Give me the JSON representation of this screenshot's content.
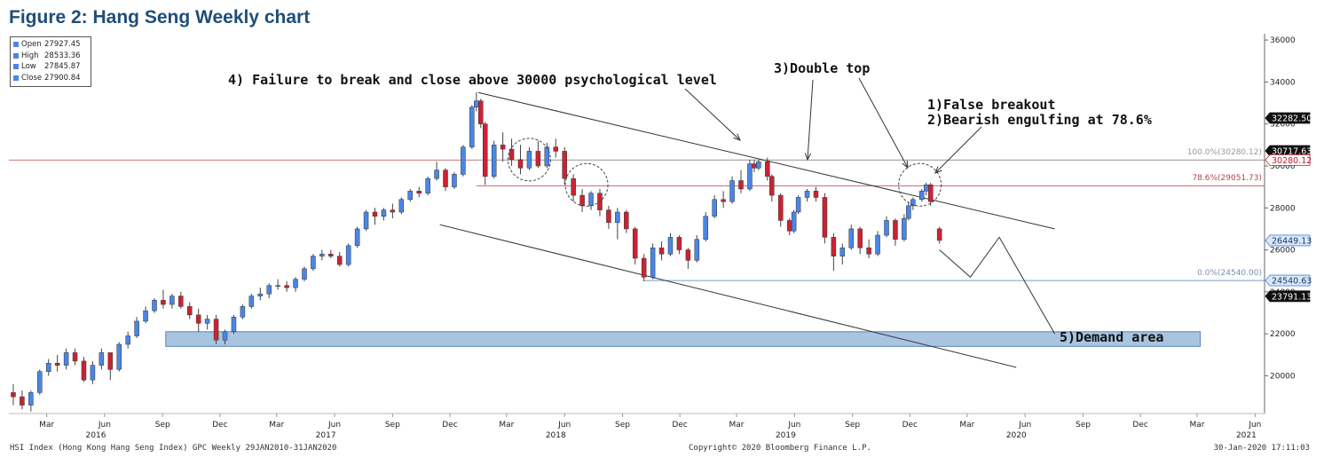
{
  "figure_title": "Figure 2: Hang Seng Weekly chart",
  "ohlc": [
    {
      "key": "Open",
      "value": "27927.45"
    },
    {
      "key": "High",
      "value": "28533.36"
    },
    {
      "key": "Low",
      "value": "27845.87"
    },
    {
      "key": "Close",
      "value": "27900.84"
    }
  ],
  "annotations": {
    "failure": "4) Failure to break and close above 30000 psychological level",
    "double_top": "3)Double top",
    "false_breakout": "1)False breakout",
    "engulfing": "2)Bearish engulfing at 78.6%",
    "demand": "5)Demand area"
  },
  "fib_labels": {
    "f100": "100.0%(30280.12)",
    "f786": "78.6%(29051.73)",
    "f0": "0.0%(24540.00)"
  },
  "price_tags": [
    {
      "value": 32282.5,
      "label": "32282.50",
      "style": "dark"
    },
    {
      "value": 30717.63,
      "label": "30717.63",
      "style": "dark"
    },
    {
      "value": 30280.12,
      "label": "30280.12",
      "style": "red"
    },
    {
      "value": 26449.13,
      "label": "26449.13",
      "style": "blue"
    },
    {
      "value": 24540.63,
      "label": "24540.63",
      "style": "blue"
    },
    {
      "value": 23791.13,
      "label": "23791.13",
      "style": "dark"
    }
  ],
  "footer": {
    "left": "HSI Index (Hong Kong Hang Seng Index) GPC  Weekly 29JAN2010-31JAN2020",
    "center": "Copyright© 2020 Bloomberg Finance L.P.",
    "right": "30-Jan-2020 17:11:03"
  },
  "colors": {
    "up": "#4a86e8",
    "down": "#cc2233",
    "fib100": "#aaaaaa",
    "fib786": "#cc6666",
    "fib0": "#7a9ccc",
    "demand_fill": "#a8c4e0",
    "demand_border": "#5a86b8",
    "res_line": "#c87878",
    "title": "#1f4e79"
  },
  "chart_data": {
    "type": "candlestick",
    "title": "Figure 2: Hang Seng Weekly chart",
    "y_ticks": [
      20000,
      22000,
      24000,
      26000,
      28000,
      30000,
      32000,
      34000,
      36000
    ],
    "ylim": [
      18200,
      36300
    ],
    "x_ticks": [
      "Mar",
      "Jun",
      "Sep",
      "Dec",
      "Mar",
      "Jun",
      "Sep",
      "Dec",
      "Mar",
      "Jun",
      "Sep",
      "Dec",
      "Mar",
      "Jun",
      "Sep",
      "Dec",
      "Mar",
      "Jun",
      "Sep",
      "Dec",
      "Mar",
      "Jun"
    ],
    "years": [
      "2016",
      "2017",
      "2018",
      "2019",
      "2020",
      "2021"
    ],
    "xlim": [
      "2016-01-15",
      "2021-06-30"
    ],
    "grid": false,
    "fib_levels": [
      {
        "level": "100.0%",
        "value": 30280.12
      },
      {
        "level": "78.6%",
        "value": 29051.73
      },
      {
        "level": "0.0%",
        "value": 24540.0
      }
    ],
    "resistance_level": 30280.12,
    "demand_zone": {
      "from": "2016-09-20",
      "to": "2021-03-20",
      "low": 21400,
      "high": 22100
    },
    "channel": {
      "upper": [
        {
          "x": "2018-01-29",
          "y": 33500
        },
        {
          "x": "2020-08-01",
          "y": 27000
        }
      ],
      "lower": [
        {
          "x": "2017-11-29",
          "y": 27200
        },
        {
          "x": "2020-06-01",
          "y": 20400
        }
      ]
    },
    "projection": [
      {
        "x": "2020-01-31",
        "y": 26000
      },
      {
        "x": "2020-03-20",
        "y": 24700
      },
      {
        "x": "2020-05-05",
        "y": 26600
      },
      {
        "x": "2020-08-01",
        "y": 22000
      }
    ],
    "highlights": [
      {
        "x": "2018-04-20",
        "y": 30300
      },
      {
        "x": "2018-07-20",
        "y": 29100
      },
      {
        "x": "2019-12-31",
        "y": 29100
      }
    ],
    "candles": [
      {
        "d": "2016-01-22",
        "o": 19200,
        "h": 19600,
        "l": 18600,
        "c": 19000
      },
      {
        "d": "2016-02-05",
        "o": 19000,
        "h": 19300,
        "l": 18400,
        "c": 18600
      },
      {
        "d": "2016-02-19",
        "o": 18600,
        "h": 19300,
        "l": 18300,
        "c": 19200
      },
      {
        "d": "2016-03-04",
        "o": 19200,
        "h": 20300,
        "l": 19100,
        "c": 20200
      },
      {
        "d": "2016-03-18",
        "o": 20200,
        "h": 20800,
        "l": 20000,
        "c": 20600
      },
      {
        "d": "2016-04-01",
        "o": 20600,
        "h": 21000,
        "l": 20200,
        "c": 20500
      },
      {
        "d": "2016-04-15",
        "o": 20500,
        "h": 21300,
        "l": 20300,
        "c": 21100
      },
      {
        "d": "2016-04-29",
        "o": 21100,
        "h": 21300,
        "l": 20500,
        "c": 20700
      },
      {
        "d": "2016-05-13",
        "o": 20700,
        "h": 20900,
        "l": 19700,
        "c": 19800
      },
      {
        "d": "2016-05-27",
        "o": 19800,
        "h": 20700,
        "l": 19600,
        "c": 20500
      },
      {
        "d": "2016-06-10",
        "o": 20500,
        "h": 21300,
        "l": 20300,
        "c": 21100
      },
      {
        "d": "2016-06-24",
        "o": 21100,
        "h": 21100,
        "l": 19800,
        "c": 20300
      },
      {
        "d": "2016-07-08",
        "o": 20300,
        "h": 21600,
        "l": 20200,
        "c": 21500
      },
      {
        "d": "2016-07-22",
        "o": 21500,
        "h": 22100,
        "l": 21300,
        "c": 21900
      },
      {
        "d": "2016-08-05",
        "o": 21900,
        "h": 22800,
        "l": 21800,
        "c": 22600
      },
      {
        "d": "2016-08-19",
        "o": 22600,
        "h": 23300,
        "l": 22500,
        "c": 23100
      },
      {
        "d": "2016-09-02",
        "o": 23100,
        "h": 23700,
        "l": 23000,
        "c": 23600
      },
      {
        "d": "2016-09-16",
        "o": 23600,
        "h": 24100,
        "l": 23200,
        "c": 23400
      },
      {
        "d": "2016-09-30",
        "o": 23400,
        "h": 23900,
        "l": 23200,
        "c": 23800
      },
      {
        "d": "2016-10-14",
        "o": 23800,
        "h": 24000,
        "l": 23200,
        "c": 23300
      },
      {
        "d": "2016-10-28",
        "o": 23300,
        "h": 23500,
        "l": 22700,
        "c": 22900
      },
      {
        "d": "2016-11-11",
        "o": 22900,
        "h": 23200,
        "l": 22100,
        "c": 22500
      },
      {
        "d": "2016-11-25",
        "o": 22500,
        "h": 22900,
        "l": 22200,
        "c": 22700
      },
      {
        "d": "2016-12-09",
        "o": 22700,
        "h": 22900,
        "l": 21500,
        "c": 21700
      },
      {
        "d": "2016-12-23",
        "o": 21700,
        "h": 22200,
        "l": 21500,
        "c": 22100
      },
      {
        "d": "2017-01-06",
        "o": 22100,
        "h": 22900,
        "l": 22000,
        "c": 22800
      },
      {
        "d": "2017-01-20",
        "o": 22800,
        "h": 23400,
        "l": 22700,
        "c": 23300
      },
      {
        "d": "2017-02-03",
        "o": 23300,
        "h": 23900,
        "l": 23200,
        "c": 23800
      },
      {
        "d": "2017-02-17",
        "o": 23800,
        "h": 24200,
        "l": 23600,
        "c": 23900
      },
      {
        "d": "2017-03-03",
        "o": 23900,
        "h": 24400,
        "l": 23700,
        "c": 24300
      },
      {
        "d": "2017-03-17",
        "o": 24300,
        "h": 24600,
        "l": 24100,
        "c": 24300
      },
      {
        "d": "2017-03-31",
        "o": 24300,
        "h": 24500,
        "l": 24000,
        "c": 24200
      },
      {
        "d": "2017-04-14",
        "o": 24200,
        "h": 24700,
        "l": 24000,
        "c": 24600
      },
      {
        "d": "2017-04-28",
        "o": 24600,
        "h": 25200,
        "l": 24500,
        "c": 25100
      },
      {
        "d": "2017-05-12",
        "o": 25100,
        "h": 25800,
        "l": 25000,
        "c": 25700
      },
      {
        "d": "2017-05-26",
        "o": 25700,
        "h": 26000,
        "l": 25500,
        "c": 25800
      },
      {
        "d": "2017-06-09",
        "o": 25800,
        "h": 26000,
        "l": 25600,
        "c": 25700
      },
      {
        "d": "2017-06-23",
        "o": 25700,
        "h": 25900,
        "l": 25200,
        "c": 25300
      },
      {
        "d": "2017-07-07",
        "o": 25300,
        "h": 26300,
        "l": 25200,
        "c": 26200
      },
      {
        "d": "2017-07-21",
        "o": 26200,
        "h": 27100,
        "l": 26100,
        "c": 27000
      },
      {
        "d": "2017-08-04",
        "o": 27000,
        "h": 27900,
        "l": 26900,
        "c": 27800
      },
      {
        "d": "2017-08-18",
        "o": 27800,
        "h": 28000,
        "l": 27200,
        "c": 27600
      },
      {
        "d": "2017-09-01",
        "o": 27600,
        "h": 28000,
        "l": 27400,
        "c": 27900
      },
      {
        "d": "2017-09-15",
        "o": 27900,
        "h": 28200,
        "l": 27500,
        "c": 27800
      },
      {
        "d": "2017-09-29",
        "o": 27800,
        "h": 28500,
        "l": 27700,
        "c": 28400
      },
      {
        "d": "2017-10-13",
        "o": 28400,
        "h": 28900,
        "l": 28300,
        "c": 28800
      },
      {
        "d": "2017-10-27",
        "o": 28800,
        "h": 29000,
        "l": 28500,
        "c": 28700
      },
      {
        "d": "2017-11-10",
        "o": 28700,
        "h": 29500,
        "l": 28600,
        "c": 29400
      },
      {
        "d": "2017-11-24",
        "o": 29400,
        "h": 30200,
        "l": 29300,
        "c": 29800
      },
      {
        "d": "2017-12-08",
        "o": 29800,
        "h": 29900,
        "l": 28800,
        "c": 29000
      },
      {
        "d": "2017-12-22",
        "o": 29000,
        "h": 29700,
        "l": 28900,
        "c": 29600
      },
      {
        "d": "2018-01-05",
        "o": 29600,
        "h": 31000,
        "l": 29500,
        "c": 30900
      },
      {
        "d": "2018-01-19",
        "o": 30900,
        "h": 32900,
        "l": 30800,
        "c": 32800
      },
      {
        "d": "2018-01-26",
        "o": 32800,
        "h": 33500,
        "l": 32600,
        "c": 33100
      },
      {
        "d": "2018-02-02",
        "o": 33100,
        "h": 33200,
        "l": 31800,
        "c": 32000
      },
      {
        "d": "2018-02-09",
        "o": 32000,
        "h": 32100,
        "l": 29100,
        "c": 29500
      },
      {
        "d": "2018-02-23",
        "o": 29500,
        "h": 31200,
        "l": 29400,
        "c": 31000
      },
      {
        "d": "2018-03-09",
        "o": 31000,
        "h": 31600,
        "l": 30200,
        "c": 30800
      },
      {
        "d": "2018-03-23",
        "o": 30800,
        "h": 31300,
        "l": 30000,
        "c": 30300
      },
      {
        "d": "2018-04-06",
        "o": 30300,
        "h": 31000,
        "l": 29600,
        "c": 29900
      },
      {
        "d": "2018-04-20",
        "o": 29900,
        "h": 30900,
        "l": 29800,
        "c": 30700
      },
      {
        "d": "2018-05-04",
        "o": 30700,
        "h": 31200,
        "l": 29900,
        "c": 30000
      },
      {
        "d": "2018-05-18",
        "o": 30000,
        "h": 31100,
        "l": 29900,
        "c": 30900
      },
      {
        "d": "2018-06-01",
        "o": 30900,
        "h": 31300,
        "l": 30400,
        "c": 30700
      },
      {
        "d": "2018-06-15",
        "o": 30700,
        "h": 30900,
        "l": 29100,
        "c": 29400
      },
      {
        "d": "2018-06-29",
        "o": 29400,
        "h": 29600,
        "l": 28300,
        "c": 28600
      },
      {
        "d": "2018-07-13",
        "o": 28600,
        "h": 28900,
        "l": 27800,
        "c": 28100
      },
      {
        "d": "2018-07-27",
        "o": 28100,
        "h": 28800,
        "l": 27900,
        "c": 28700
      },
      {
        "d": "2018-08-10",
        "o": 28700,
        "h": 28900,
        "l": 27600,
        "c": 27900
      },
      {
        "d": "2018-08-24",
        "o": 27900,
        "h": 28100,
        "l": 27000,
        "c": 27300
      },
      {
        "d": "2018-09-07",
        "o": 27300,
        "h": 28000,
        "l": 26500,
        "c": 27800
      },
      {
        "d": "2018-09-21",
        "o": 27800,
        "h": 27900,
        "l": 26800,
        "c": 27000
      },
      {
        "d": "2018-10-05",
        "o": 27000,
        "h": 27100,
        "l": 25300,
        "c": 25600
      },
      {
        "d": "2018-10-19",
        "o": 25600,
        "h": 25800,
        "l": 24500,
        "c": 24700
      },
      {
        "d": "2018-11-02",
        "o": 24700,
        "h": 26300,
        "l": 24600,
        "c": 26100
      },
      {
        "d": "2018-11-16",
        "o": 26100,
        "h": 26400,
        "l": 25500,
        "c": 25800
      },
      {
        "d": "2018-11-30",
        "o": 25800,
        "h": 26800,
        "l": 25700,
        "c": 26600
      },
      {
        "d": "2018-12-14",
        "o": 26600,
        "h": 26700,
        "l": 25800,
        "c": 26000
      },
      {
        "d": "2018-12-28",
        "o": 26000,
        "h": 26100,
        "l": 25100,
        "c": 25500
      },
      {
        "d": "2019-01-11",
        "o": 25500,
        "h": 26700,
        "l": 25400,
        "c": 26500
      },
      {
        "d": "2019-01-25",
        "o": 26500,
        "h": 27800,
        "l": 26400,
        "c": 27600
      },
      {
        "d": "2019-02-08",
        "o": 27600,
        "h": 28600,
        "l": 27500,
        "c": 28400
      },
      {
        "d": "2019-02-22",
        "o": 28400,
        "h": 28800,
        "l": 28000,
        "c": 28300
      },
      {
        "d": "2019-03-08",
        "o": 28300,
        "h": 29500,
        "l": 28200,
        "c": 29300
      },
      {
        "d": "2019-03-22",
        "o": 29300,
        "h": 29800,
        "l": 28700,
        "c": 28900
      },
      {
        "d": "2019-04-05",
        "o": 28900,
        "h": 30300,
        "l": 28800,
        "c": 30100
      },
      {
        "d": "2019-04-12",
        "o": 30100,
        "h": 30300,
        "l": 29700,
        "c": 29900
      },
      {
        "d": "2019-04-19",
        "o": 29900,
        "h": 30300,
        "l": 29800,
        "c": 30200
      },
      {
        "d": "2019-05-03",
        "o": 30200,
        "h": 30400,
        "l": 29300,
        "c": 29500
      },
      {
        "d": "2019-05-10",
        "o": 29500,
        "h": 29600,
        "l": 28300,
        "c": 28600
      },
      {
        "d": "2019-05-24",
        "o": 28600,
        "h": 28700,
        "l": 27100,
        "c": 27400
      },
      {
        "d": "2019-06-07",
        "o": 27400,
        "h": 27500,
        "l": 26700,
        "c": 26900
      },
      {
        "d": "2019-06-14",
        "o": 26900,
        "h": 27900,
        "l": 26800,
        "c": 27800
      },
      {
        "d": "2019-06-21",
        "o": 27800,
        "h": 28600,
        "l": 27700,
        "c": 28500
      },
      {
        "d": "2019-07-05",
        "o": 28500,
        "h": 28900,
        "l": 28300,
        "c": 28800
      },
      {
        "d": "2019-07-19",
        "o": 28800,
        "h": 29000,
        "l": 28300,
        "c": 28500
      },
      {
        "d": "2019-08-02",
        "o": 28500,
        "h": 28700,
        "l": 26300,
        "c": 26600
      },
      {
        "d": "2019-08-16",
        "o": 26600,
        "h": 26800,
        "l": 25000,
        "c": 25700
      },
      {
        "d": "2019-08-30",
        "o": 25700,
        "h": 26300,
        "l": 25300,
        "c": 26100
      },
      {
        "d": "2019-09-13",
        "o": 26100,
        "h": 27200,
        "l": 26000,
        "c": 27000
      },
      {
        "d": "2019-09-27",
        "o": 27000,
        "h": 27100,
        "l": 25800,
        "c": 26100
      },
      {
        "d": "2019-10-11",
        "o": 26100,
        "h": 26500,
        "l": 25600,
        "c": 25800
      },
      {
        "d": "2019-10-25",
        "o": 25800,
        "h": 26900,
        "l": 25700,
        "c": 26700
      },
      {
        "d": "2019-11-08",
        "o": 26700,
        "h": 27600,
        "l": 26600,
        "c": 27400
      },
      {
        "d": "2019-11-22",
        "o": 27400,
        "h": 27500,
        "l": 26200,
        "c": 26500
      },
      {
        "d": "2019-12-06",
        "o": 26500,
        "h": 27700,
        "l": 26400,
        "c": 27500
      },
      {
        "d": "2019-12-13",
        "o": 27500,
        "h": 28300,
        "l": 27400,
        "c": 28100
      },
      {
        "d": "2019-12-20",
        "o": 28100,
        "h": 28500,
        "l": 27900,
        "c": 28400
      },
      {
        "d": "2020-01-03",
        "o": 28400,
        "h": 28900,
        "l": 28300,
        "c": 28800
      },
      {
        "d": "2020-01-10",
        "o": 28800,
        "h": 29200,
        "l": 28600,
        "c": 29100
      },
      {
        "d": "2020-01-17",
        "o": 29100,
        "h": 29200,
        "l": 28100,
        "c": 28300
      },
      {
        "d": "2020-01-31",
        "o": 27000,
        "h": 27100,
        "l": 26300,
        "c": 26450
      }
    ]
  }
}
